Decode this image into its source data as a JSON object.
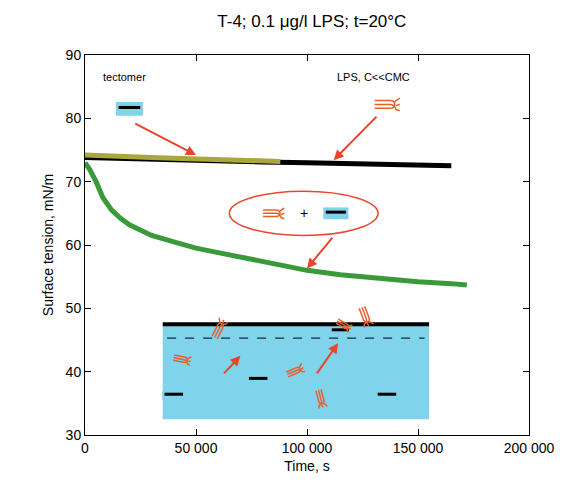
{
  "chart_data": {
    "type": "line",
    "title": "T-4; 0.1 μg/l LPS; t=20°C",
    "x_label": "Time, s",
    "y_label": "Surface tension, mN/m",
    "xlim": [
      0,
      200000
    ],
    "xticks": [
      0,
      {
        "value": 50000,
        "label": "50 000"
      },
      {
        "value": 100000,
        "label": "100 000"
      },
      {
        "value": 150000,
        "label": "150 000"
      },
      {
        "value": 200000,
        "label": "200 000"
      }
    ],
    "ylim": [
      30,
      90
    ],
    "yticks": [
      30,
      40,
      50,
      60,
      70,
      80,
      90
    ],
    "grid": false,
    "series": [
      {
        "name": "LPS, C<<CMC",
        "color": "#000000",
        "x": [
          0,
          20000,
          40000,
          60000,
          80000,
          100000,
          120000,
          140000,
          165000
        ],
        "values": [
          73.8,
          73.6,
          73.4,
          73.3,
          73.1,
          73.0,
          72.9,
          72.7,
          72.5
        ]
      },
      {
        "name": "tectomer",
        "color": "#a8a83c",
        "x": [
          0,
          10000,
          20000,
          30000,
          40000,
          50000,
          60000,
          70000,
          80000,
          88000
        ],
        "values": [
          74.2,
          74.0,
          73.9,
          73.8,
          73.7,
          73.6,
          73.5,
          73.4,
          73.3,
          73.2
        ]
      },
      {
        "color": "#3a9a3a",
        "x": [
          0,
          2000,
          5000,
          8000,
          12000,
          16000,
          20000,
          25000,
          30000,
          40000,
          50000,
          60000,
          75000,
          90000,
          100000,
          115000,
          130000,
          150000,
          165000,
          172000
        ],
        "values": [
          73.0,
          72.0,
          70.0,
          67.5,
          65.5,
          64.2,
          63.2,
          62.3,
          61.5,
          60.5,
          59.5,
          58.8,
          57.7,
          56.6,
          56.0,
          55.3,
          54.8,
          54.2,
          53.9,
          53.7
        ]
      }
    ],
    "annotations": [
      "+"
    ]
  }
}
